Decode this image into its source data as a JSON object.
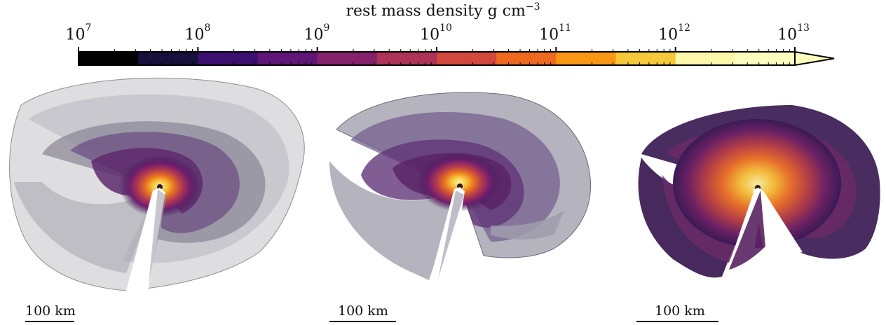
{
  "colorbar": {
    "title_text": "rest mass density g cm",
    "title_exponent": "−3",
    "tick_labels": [
      {
        "base": "10",
        "exp": "7"
      },
      {
        "base": "10",
        "exp": "8"
      },
      {
        "base": "10",
        "exp": "9"
      },
      {
        "base": "10",
        "exp": "10"
      },
      {
        "base": "10",
        "exp": "11"
      },
      {
        "base": "10",
        "exp": "12"
      },
      {
        "base": "10",
        "exp": "13"
      }
    ],
    "bins": [
      "#000000",
      "#170f3c",
      "#3a0f6e",
      "#5f1677",
      "#86216b",
      "#ad3359",
      "#d1483d",
      "#ee6a1f",
      "#f99714",
      "#f6c93a",
      "#fdf7a9",
      "#fdfdbd"
    ]
  },
  "panels": [
    {
      "scale_bar_label": "100 km"
    },
    {
      "scale_bar_label": "100 km"
    },
    {
      "scale_bar_label": "100 km"
    }
  ]
}
